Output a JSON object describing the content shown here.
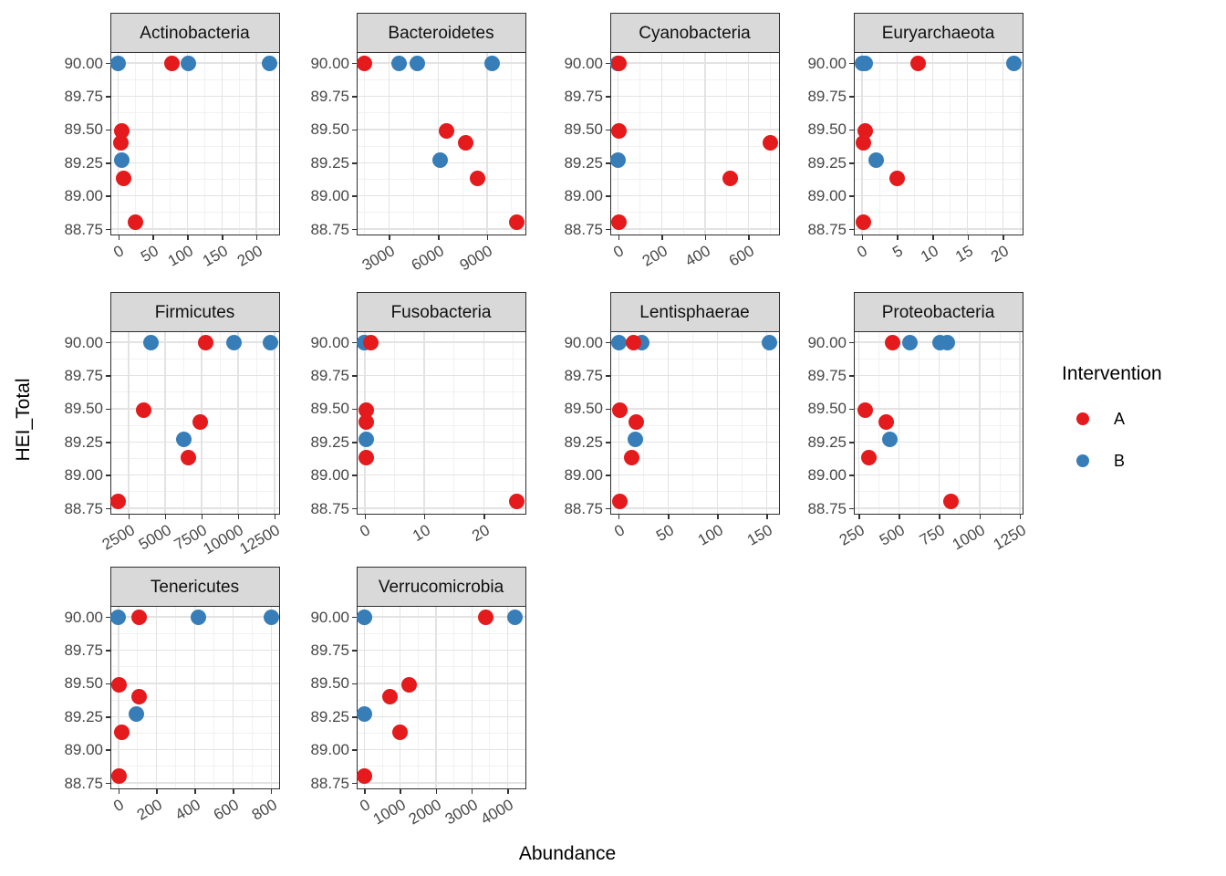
{
  "chart_data": {
    "type": "scatter",
    "title": "",
    "xlabel": "Abundance",
    "ylabel": "HEI_Total",
    "grid": "on",
    "legend": {
      "title": "Intervention",
      "position": "right",
      "entries": [
        {
          "label": "A",
          "color": "#E41A1C"
        },
        {
          "label": "B",
          "color": "#377EB8"
        }
      ]
    },
    "y_ticks": [
      88.75,
      89.0,
      89.25,
      89.5,
      89.75,
      90.0
    ],
    "y_range": [
      88.72,
      90.08
    ],
    "facets": [
      {
        "name": "Actinobacteria",
        "x_ticks": [
          0,
          50,
          100,
          150,
          200
        ],
        "x_range": [
          -11,
          231
        ],
        "points": [
          {
            "x": 0,
            "y": 90.0,
            "g": "B"
          },
          {
            "x": 102,
            "y": 90.0,
            "g": "B"
          },
          {
            "x": 219,
            "y": 90.0,
            "g": "B"
          },
          {
            "x": 5,
            "y": 89.27,
            "g": "B"
          },
          {
            "x": 78,
            "y": 90.0,
            "g": "A"
          },
          {
            "x": 5,
            "y": 89.49,
            "g": "A"
          },
          {
            "x": 4,
            "y": 89.4,
            "g": "A"
          },
          {
            "x": 8,
            "y": 89.13,
            "g": "A"
          },
          {
            "x": 25,
            "y": 88.8,
            "g": "A"
          }
        ]
      },
      {
        "name": "Bacteroidetes",
        "x_ticks": [
          3000,
          6000,
          9000
        ],
        "x_range": [
          1030,
          11270
        ],
        "points": [
          {
            "x": 3600,
            "y": 90.0,
            "g": "B"
          },
          {
            "x": 4700,
            "y": 90.0,
            "g": "B"
          },
          {
            "x": 9300,
            "y": 90.0,
            "g": "B"
          },
          {
            "x": 6100,
            "y": 89.27,
            "g": "B"
          },
          {
            "x": 1500,
            "y": 90.0,
            "g": "A"
          },
          {
            "x": 6500,
            "y": 89.49,
            "g": "A"
          },
          {
            "x": 7700,
            "y": 89.4,
            "g": "A"
          },
          {
            "x": 8400,
            "y": 89.13,
            "g": "A"
          },
          {
            "x": 10800,
            "y": 88.8,
            "g": "A"
          }
        ]
      },
      {
        "name": "Cyanobacteria",
        "x_ticks": [
          0,
          200,
          400,
          600
        ],
        "x_range": [
          -35,
          735
        ],
        "points": [
          {
            "x": 0,
            "y": 90.0,
            "g": "B"
          },
          {
            "x": 0,
            "y": 90.0,
            "g": "B"
          },
          {
            "x": 0,
            "y": 90.0,
            "g": "B"
          },
          {
            "x": 0,
            "y": 89.27,
            "g": "B"
          },
          {
            "x": 2,
            "y": 90.0,
            "g": "A"
          },
          {
            "x": 2,
            "y": 89.49,
            "g": "A"
          },
          {
            "x": 700,
            "y": 89.4,
            "g": "A"
          },
          {
            "x": 515,
            "y": 89.13,
            "g": "A"
          },
          {
            "x": 2,
            "y": 88.8,
            "g": "A"
          }
        ]
      },
      {
        "name": "Euryarchaeota",
        "x_ticks": [
          0,
          5,
          10,
          15,
          20
        ],
        "x_range": [
          -1.1,
          22.6
        ],
        "points": [
          {
            "x": 0,
            "y": 90.0,
            "g": "B"
          },
          {
            "x": 0.5,
            "y": 90.0,
            "g": "B"
          },
          {
            "x": 21.5,
            "y": 90.0,
            "g": "B"
          },
          {
            "x": 2,
            "y": 89.27,
            "g": "B"
          },
          {
            "x": 8,
            "y": 90.0,
            "g": "A"
          },
          {
            "x": 0.4,
            "y": 89.49,
            "g": "A"
          },
          {
            "x": 0.2,
            "y": 89.4,
            "g": "A"
          },
          {
            "x": 5,
            "y": 89.13,
            "g": "A"
          },
          {
            "x": 0.2,
            "y": 88.8,
            "g": "A"
          }
        ]
      },
      {
        "name": "Firmicutes",
        "x_ticks": [
          2500,
          5000,
          7500,
          10000,
          12500
        ],
        "x_range": [
          1280,
          12720
        ],
        "points": [
          {
            "x": 4000,
            "y": 90.0,
            "g": "B"
          },
          {
            "x": 9700,
            "y": 90.0,
            "g": "B"
          },
          {
            "x": 12200,
            "y": 90.0,
            "g": "B"
          },
          {
            "x": 6300,
            "y": 89.27,
            "g": "B"
          },
          {
            "x": 7800,
            "y": 90.0,
            "g": "A"
          },
          {
            "x": 3500,
            "y": 89.49,
            "g": "A"
          },
          {
            "x": 7400,
            "y": 89.4,
            "g": "A"
          },
          {
            "x": 6600,
            "y": 89.13,
            "g": "A"
          },
          {
            "x": 1800,
            "y": 88.8,
            "g": "A"
          }
        ]
      },
      {
        "name": "Fusobacteria",
        "x_ticks": [
          0,
          10,
          20
        ],
        "x_range": [
          -1.3,
          26.8
        ],
        "points": [
          {
            "x": 0,
            "y": 90.0,
            "g": "B"
          },
          {
            "x": 0,
            "y": 90.0,
            "g": "B"
          },
          {
            "x": 0,
            "y": 90.0,
            "g": "B"
          },
          {
            "x": 0.2,
            "y": 89.27,
            "g": "B"
          },
          {
            "x": 1,
            "y": 90.0,
            "g": "A"
          },
          {
            "x": 0.3,
            "y": 89.49,
            "g": "A"
          },
          {
            "x": 0.2,
            "y": 89.4,
            "g": "A"
          },
          {
            "x": 0.2,
            "y": 89.13,
            "g": "A"
          },
          {
            "x": 25.5,
            "y": 88.8,
            "g": "A"
          }
        ]
      },
      {
        "name": "Lentisphaerae",
        "x_ticks": [
          0,
          50,
          100,
          150
        ],
        "x_range": [
          -8,
          161
        ],
        "points": [
          {
            "x": 0,
            "y": 90.0,
            "g": "B"
          },
          {
            "x": 23,
            "y": 90.0,
            "g": "B"
          },
          {
            "x": 153,
            "y": 90.0,
            "g": "B"
          },
          {
            "x": 17,
            "y": 89.27,
            "g": "B"
          },
          {
            "x": 15,
            "y": 90.0,
            "g": "A"
          },
          {
            "x": 1,
            "y": 89.49,
            "g": "A"
          },
          {
            "x": 18,
            "y": 89.4,
            "g": "A"
          },
          {
            "x": 13,
            "y": 89.13,
            "g": "A"
          },
          {
            "x": 1,
            "y": 88.8,
            "g": "A"
          }
        ]
      },
      {
        "name": "Proteobacteria",
        "x_ticks": [
          250,
          500,
          750,
          1000,
          1250
        ],
        "x_range": [
          222,
          1258
        ],
        "points": [
          {
            "x": 570,
            "y": 90.0,
            "g": "B"
          },
          {
            "x": 755,
            "y": 90.0,
            "g": "B"
          },
          {
            "x": 800,
            "y": 90.0,
            "g": "B"
          },
          {
            "x": 440,
            "y": 89.27,
            "g": "B"
          },
          {
            "x": 460,
            "y": 90.0,
            "g": "A"
          },
          {
            "x": 290,
            "y": 89.49,
            "g": "A"
          },
          {
            "x": 420,
            "y": 89.4,
            "g": "A"
          },
          {
            "x": 310,
            "y": 89.13,
            "g": "A"
          },
          {
            "x": 820,
            "y": 88.8,
            "g": "A"
          }
        ]
      },
      {
        "name": "Tenericutes",
        "x_ticks": [
          0,
          200,
          400,
          600,
          800
        ],
        "x_range": [
          -40,
          835
        ],
        "points": [
          {
            "x": 0,
            "y": 90.0,
            "g": "B"
          },
          {
            "x": 420,
            "y": 90.0,
            "g": "B"
          },
          {
            "x": 800,
            "y": 90.0,
            "g": "B"
          },
          {
            "x": 95,
            "y": 89.27,
            "g": "B"
          },
          {
            "x": 110,
            "y": 90.0,
            "g": "A"
          },
          {
            "x": 3,
            "y": 89.49,
            "g": "A"
          },
          {
            "x": 110,
            "y": 89.4,
            "g": "A"
          },
          {
            "x": 15,
            "y": 89.13,
            "g": "A"
          },
          {
            "x": 3,
            "y": 88.8,
            "g": "A"
          }
        ]
      },
      {
        "name": "Verrucomicrobia",
        "x_ticks": [
          0,
          1000,
          2000,
          3000,
          4000
        ],
        "x_range": [
          -200,
          4460
        ],
        "points": [
          {
            "x": 0,
            "y": 90.0,
            "g": "B"
          },
          {
            "x": 0,
            "y": 90.0,
            "g": "B"
          },
          {
            "x": 4200,
            "y": 90.0,
            "g": "B"
          },
          {
            "x": 0,
            "y": 89.27,
            "g": "B"
          },
          {
            "x": 3400,
            "y": 90.0,
            "g": "A"
          },
          {
            "x": 1250,
            "y": 89.49,
            "g": "A"
          },
          {
            "x": 725,
            "y": 89.4,
            "g": "A"
          },
          {
            "x": 1000,
            "y": 89.13,
            "g": "A"
          },
          {
            "x": 0,
            "y": 88.8,
            "g": "A"
          }
        ]
      }
    ]
  }
}
